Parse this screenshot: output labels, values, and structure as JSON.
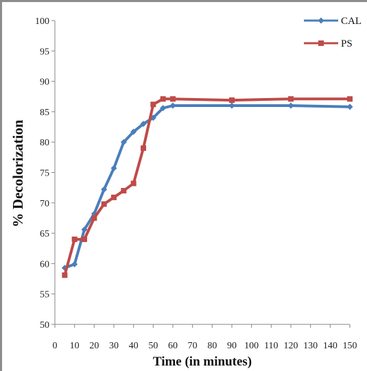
{
  "chart_data": {
    "type": "line",
    "title": "",
    "xlabel": "Time (in minutes)",
    "ylabel": "% Decolorization",
    "xlim": [
      0,
      150
    ],
    "ylim": [
      50,
      100
    ],
    "x_ticks": [
      0,
      10,
      20,
      30,
      40,
      50,
      60,
      70,
      80,
      90,
      100,
      110,
      120,
      130,
      140,
      150
    ],
    "y_ticks": [
      50,
      55,
      60,
      65,
      70,
      75,
      80,
      85,
      90,
      95,
      100
    ],
    "grid": false,
    "legend_position": "top-right",
    "series": [
      {
        "name": "CAL",
        "color": "#4a7ebb",
        "marker": "diamond",
        "x": [
          5,
          10,
          15,
          20,
          25,
          30,
          35,
          40,
          45,
          50,
          55,
          60,
          90,
          120,
          150
        ],
        "y": [
          59.3,
          59.9,
          65.6,
          68.2,
          72.2,
          75.7,
          80.0,
          81.7,
          83.0,
          84.0,
          85.6,
          86.0,
          86.0,
          86.0,
          85.8
        ]
      },
      {
        "name": "PS",
        "color": "#be4b48",
        "marker": "square",
        "x": [
          5,
          10,
          15,
          20,
          25,
          30,
          35,
          40,
          45,
          50,
          55,
          60,
          90,
          120,
          150
        ],
        "y": [
          58.1,
          64.0,
          64.0,
          67.5,
          69.8,
          70.9,
          72.0,
          73.2,
          79.0,
          86.2,
          87.1,
          87.1,
          86.9,
          87.1,
          87.1
        ]
      }
    ]
  }
}
